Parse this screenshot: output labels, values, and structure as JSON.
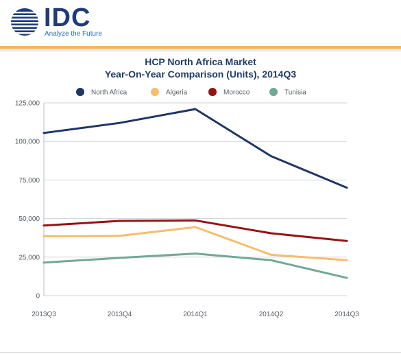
{
  "header": {
    "logo_text": "IDC",
    "tagline": "Analyze the Future"
  },
  "chart_data": {
    "type": "line",
    "title": "HCP North Africa Market",
    "subtitle": "Year-On-Year Comparison (Units), 2014Q3",
    "xlabel": "",
    "ylabel": "",
    "categories": [
      "2013Q3",
      "2013Q4",
      "2014Q1",
      "2014Q2",
      "2014Q3"
    ],
    "ylim": [
      0,
      125000
    ],
    "yticks": [
      0,
      25000,
      50000,
      75000,
      100000,
      125000
    ],
    "ytick_labels": [
      "0",
      "25,000",
      "50,000",
      "75,000",
      "100,000",
      "125,000"
    ],
    "grid": true,
    "legend_position": "top",
    "series": [
      {
        "name": "North Africa",
        "color": "#1f3564",
        "values": [
          105500,
          112000,
          121000,
          90500,
          70000
        ]
      },
      {
        "name": "Algeria",
        "color": "#f6bd6b",
        "values": [
          38500,
          38800,
          44500,
          26500,
          23000
        ]
      },
      {
        "name": "Morocco",
        "color": "#951313",
        "values": [
          45500,
          48500,
          48800,
          40500,
          35500
        ]
      },
      {
        "name": "Tunisia",
        "color": "#73a893",
        "values": [
          21500,
          24500,
          27300,
          23000,
          11500
        ]
      }
    ]
  }
}
